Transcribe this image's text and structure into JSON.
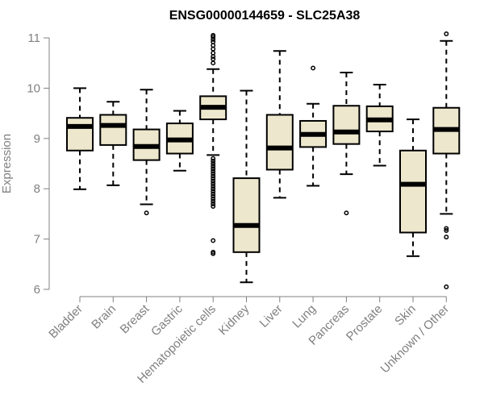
{
  "chart_data": {
    "type": "boxplot",
    "title": "ENSG00000144659 - SLC25A38",
    "xlabel": "",
    "ylabel": "Expression",
    "ylim": [
      6,
      11
    ],
    "yticks": [
      "6",
      "7",
      "8",
      "9",
      "10",
      "11"
    ],
    "categories": [
      "Bladder",
      "Brain",
      "Breast",
      "Gastric",
      "Hematopoietic cells",
      "Kidney",
      "Liver",
      "Lung",
      "Pancreas",
      "Prostate",
      "Skin",
      "Unknown / Other"
    ],
    "box_color": "#ede7cd",
    "boxes": [
      {
        "name": "Bladder",
        "whisker_low": 7.99,
        "q1": 8.76,
        "median": 9.24,
        "q3": 9.41,
        "whisker_high": 10.0,
        "outliers": []
      },
      {
        "name": "Brain",
        "whisker_low": 8.07,
        "q1": 8.87,
        "median": 9.26,
        "q3": 9.47,
        "whisker_high": 9.73,
        "outliers": []
      },
      {
        "name": "Breast",
        "whisker_low": 7.69,
        "q1": 8.57,
        "median": 8.84,
        "q3": 9.18,
        "whisker_high": 9.97,
        "outliers": [
          7.52
        ]
      },
      {
        "name": "Gastric",
        "whisker_low": 8.36,
        "q1": 8.7,
        "median": 8.97,
        "q3": 9.3,
        "whisker_high": 9.55,
        "outliers": []
      },
      {
        "name": "Hematopoietic cells",
        "whisker_low": 8.67,
        "q1": 9.38,
        "median": 9.62,
        "q3": 9.84,
        "whisker_high": 10.38,
        "outliers": [
          10.5,
          10.58,
          10.63,
          10.7,
          10.78,
          10.85,
          10.92,
          10.97,
          11.02,
          11.05,
          8.6,
          8.55,
          8.5,
          8.45,
          8.4,
          8.35,
          8.3,
          8.25,
          8.2,
          8.15,
          8.1,
          8.05,
          8.0,
          7.95,
          7.9,
          7.85,
          7.8,
          7.75,
          7.7,
          7.65,
          6.97,
          6.74,
          6.71
        ]
      },
      {
        "name": "Kidney",
        "whisker_low": 6.14,
        "q1": 6.74,
        "median": 7.27,
        "q3": 8.21,
        "whisker_high": 9.95,
        "outliers": []
      },
      {
        "name": "Liver",
        "whisker_low": 7.82,
        "q1": 8.38,
        "median": 8.81,
        "q3": 9.47,
        "whisker_high": 10.74,
        "outliers": []
      },
      {
        "name": "Lung",
        "whisker_low": 8.06,
        "q1": 8.83,
        "median": 9.08,
        "q3": 9.35,
        "whisker_high": 9.69,
        "outliers": [
          10.4
        ]
      },
      {
        "name": "Pancreas",
        "whisker_low": 8.29,
        "q1": 8.89,
        "median": 9.13,
        "q3": 9.65,
        "whisker_high": 10.31,
        "outliers": [
          7.52
        ]
      },
      {
        "name": "Prostate",
        "whisker_low": 8.46,
        "q1": 9.14,
        "median": 9.37,
        "q3": 9.64,
        "whisker_high": 10.07,
        "outliers": []
      },
      {
        "name": "Skin",
        "whisker_low": 6.66,
        "q1": 7.13,
        "median": 8.09,
        "q3": 8.76,
        "whisker_high": 9.38,
        "outliers": []
      },
      {
        "name": "Unknown / Other",
        "whisker_low": 7.5,
        "q1": 8.7,
        "median": 9.18,
        "q3": 9.61,
        "whisker_high": 10.94,
        "outliers": [
          11.08,
          7.21,
          7.17,
          7.04,
          6.05
        ]
      }
    ]
  }
}
